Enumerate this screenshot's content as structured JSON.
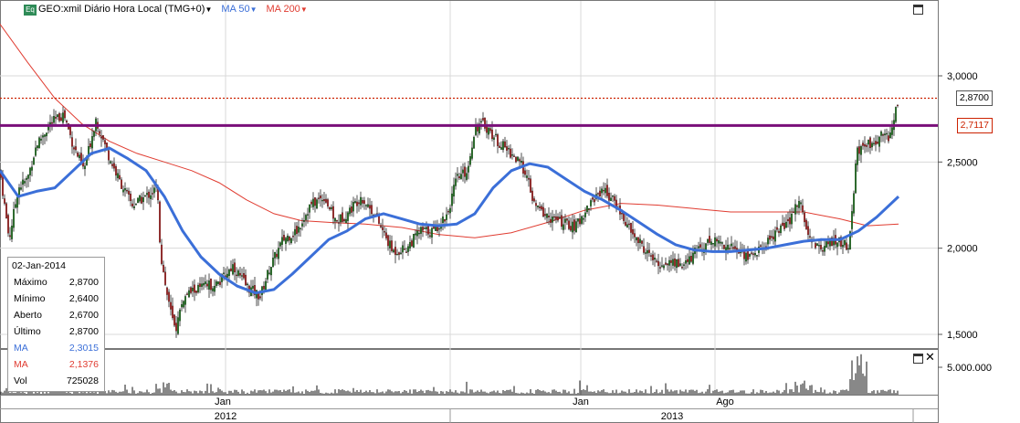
{
  "header": {
    "symbol": "GEO:xmil Diário Hora Local (TMG+0)",
    "ma50": "MA 50",
    "ma200": "MA 200",
    "eq_badge": "Eq"
  },
  "infobox": {
    "date": "02-Jan-2014",
    "rows": [
      {
        "label": "Máximo",
        "value": "2,8700",
        "color": "#000000"
      },
      {
        "label": "Mínimo",
        "value": "2,6400",
        "color": "#000000"
      },
      {
        "label": "Aberto",
        "value": "2,6700",
        "color": "#000000"
      },
      {
        "label": "Último",
        "value": "2,8700",
        "color": "#000000"
      },
      {
        "label": "MA",
        "value": "2,3015",
        "color": "#3b6fd8"
      },
      {
        "label": "MA",
        "value": "2,1376",
        "color": "#e03c31"
      },
      {
        "label": "Vol",
        "value": "725028",
        "color": "#000000"
      }
    ]
  },
  "colors": {
    "ma50": "#3b6fd8",
    "ma200": "#e03c31",
    "resistance": "#7a0f7a",
    "last_price_line": "#cc2200",
    "up_candle": "#1a7a1a",
    "down_candle": "#b81c1c"
  },
  "chart_data": {
    "type": "candlestick",
    "y_axis_ticks": [
      "3,0000",
      "2,5000",
      "2,0000",
      "1,5000"
    ],
    "y_range": [
      1.42,
      3.42
    ],
    "price_tags": {
      "last": "2,8700",
      "resistance": "2,7117"
    },
    "x_axis_months": [
      "Jan",
      "Jan",
      "Ago"
    ],
    "x_axis_years": [
      "2012",
      "2013"
    ],
    "volume_ticks": [
      "5.000.000"
    ],
    "close_series": [
      [
        0,
        2.45
      ],
      [
        10,
        2.05
      ],
      [
        20,
        2.35
      ],
      [
        30,
        2.4
      ],
      [
        40,
        2.6
      ],
      [
        55,
        2.72
      ],
      [
        70,
        2.78
      ],
      [
        80,
        2.6
      ],
      [
        92,
        2.45
      ],
      [
        105,
        2.75
      ],
      [
        118,
        2.55
      ],
      [
        130,
        2.4
      ],
      [
        145,
        2.25
      ],
      [
        160,
        2.3
      ],
      [
        172,
        2.35
      ],
      [
        176,
        1.95
      ],
      [
        184,
        1.7
      ],
      [
        192,
        1.52
      ],
      [
        200,
        1.7
      ],
      [
        210,
        1.75
      ],
      [
        225,
        1.78
      ],
      [
        240,
        1.8
      ],
      [
        255,
        1.9
      ],
      [
        270,
        1.78
      ],
      [
        285,
        1.72
      ],
      [
        295,
        1.88
      ],
      [
        310,
        2.05
      ],
      [
        325,
        2.1
      ],
      [
        340,
        2.25
      ],
      [
        355,
        2.3
      ],
      [
        368,
        2.15
      ],
      [
        380,
        2.2
      ],
      [
        395,
        2.3
      ],
      [
        410,
        2.2
      ],
      [
        430,
        1.98
      ],
      [
        445,
        2.0
      ],
      [
        460,
        2.1
      ],
      [
        475,
        2.1
      ],
      [
        490,
        2.2
      ],
      [
        500,
        2.4
      ],
      [
        512,
        2.45
      ],
      [
        520,
        2.7
      ],
      [
        530,
        2.72
      ],
      [
        545,
        2.62
      ],
      [
        560,
        2.55
      ],
      [
        575,
        2.45
      ],
      [
        585,
        2.25
      ],
      [
        600,
        2.18
      ],
      [
        615,
        2.15
      ],
      [
        630,
        2.12
      ],
      [
        645,
        2.25
      ],
      [
        660,
        2.35
      ],
      [
        675,
        2.25
      ],
      [
        690,
        2.1
      ],
      [
        705,
        2.0
      ],
      [
        720,
        1.9
      ],
      [
        735,
        1.92
      ],
      [
        750,
        1.9
      ],
      [
        765,
        2.0
      ],
      [
        780,
        2.05
      ],
      [
        795,
        2.02
      ],
      [
        810,
        1.98
      ],
      [
        820,
        1.95
      ],
      [
        835,
        2.0
      ],
      [
        850,
        2.1
      ],
      [
        865,
        2.15
      ],
      [
        875,
        2.3
      ],
      [
        885,
        2.05
      ],
      [
        900,
        2.0
      ],
      [
        915,
        2.05
      ],
      [
        930,
        2.0
      ],
      [
        938,
        2.55
      ],
      [
        950,
        2.6
      ],
      [
        965,
        2.65
      ],
      [
        975,
        2.65
      ],
      [
        984,
        2.87
      ]
    ],
    "ma50_series": [
      [
        0,
        2.45
      ],
      [
        20,
        2.3
      ],
      [
        40,
        2.33
      ],
      [
        60,
        2.35
      ],
      [
        80,
        2.45
      ],
      [
        100,
        2.55
      ],
      [
        120,
        2.58
      ],
      [
        140,
        2.52
      ],
      [
        160,
        2.45
      ],
      [
        180,
        2.3
      ],
      [
        200,
        2.1
      ],
      [
        220,
        1.95
      ],
      [
        240,
        1.85
      ],
      [
        260,
        1.78
      ],
      [
        280,
        1.74
      ],
      [
        300,
        1.76
      ],
      [
        320,
        1.85
      ],
      [
        340,
        1.95
      ],
      [
        360,
        2.05
      ],
      [
        380,
        2.1
      ],
      [
        400,
        2.17
      ],
      [
        420,
        2.2
      ],
      [
        440,
        2.17
      ],
      [
        460,
        2.14
      ],
      [
        480,
        2.13
      ],
      [
        500,
        2.14
      ],
      [
        520,
        2.2
      ],
      [
        540,
        2.35
      ],
      [
        560,
        2.45
      ],
      [
        580,
        2.49
      ],
      [
        600,
        2.47
      ],
      [
        620,
        2.4
      ],
      [
        640,
        2.33
      ],
      [
        660,
        2.28
      ],
      [
        680,
        2.22
      ],
      [
        700,
        2.15
      ],
      [
        720,
        2.08
      ],
      [
        740,
        2.02
      ],
      [
        760,
        1.99
      ],
      [
        780,
        1.98
      ],
      [
        800,
        1.98
      ],
      [
        820,
        1.99
      ],
      [
        840,
        2.0
      ],
      [
        860,
        2.02
      ],
      [
        880,
        2.04
      ],
      [
        900,
        2.05
      ],
      [
        920,
        2.05
      ],
      [
        940,
        2.1
      ],
      [
        960,
        2.18
      ],
      [
        984,
        2.3
      ]
    ],
    "ma200_series": [
      [
        0,
        3.3
      ],
      [
        30,
        3.08
      ],
      [
        60,
        2.87
      ],
      [
        90,
        2.72
      ],
      [
        120,
        2.62
      ],
      [
        150,
        2.55
      ],
      [
        180,
        2.5
      ],
      [
        210,
        2.45
      ],
      [
        240,
        2.38
      ],
      [
        270,
        2.28
      ],
      [
        300,
        2.2
      ],
      [
        330,
        2.16
      ],
      [
        360,
        2.15
      ],
      [
        400,
        2.14
      ],
      [
        440,
        2.12
      ],
      [
        480,
        2.08
      ],
      [
        520,
        2.06
      ],
      [
        560,
        2.09
      ],
      [
        600,
        2.15
      ],
      [
        640,
        2.22
      ],
      [
        680,
        2.26
      ],
      [
        720,
        2.25
      ],
      [
        760,
        2.23
      ],
      [
        800,
        2.21
      ],
      [
        840,
        2.21
      ],
      [
        880,
        2.21
      ],
      [
        920,
        2.17
      ],
      [
        950,
        2.13
      ],
      [
        984,
        2.14
      ]
    ]
  }
}
